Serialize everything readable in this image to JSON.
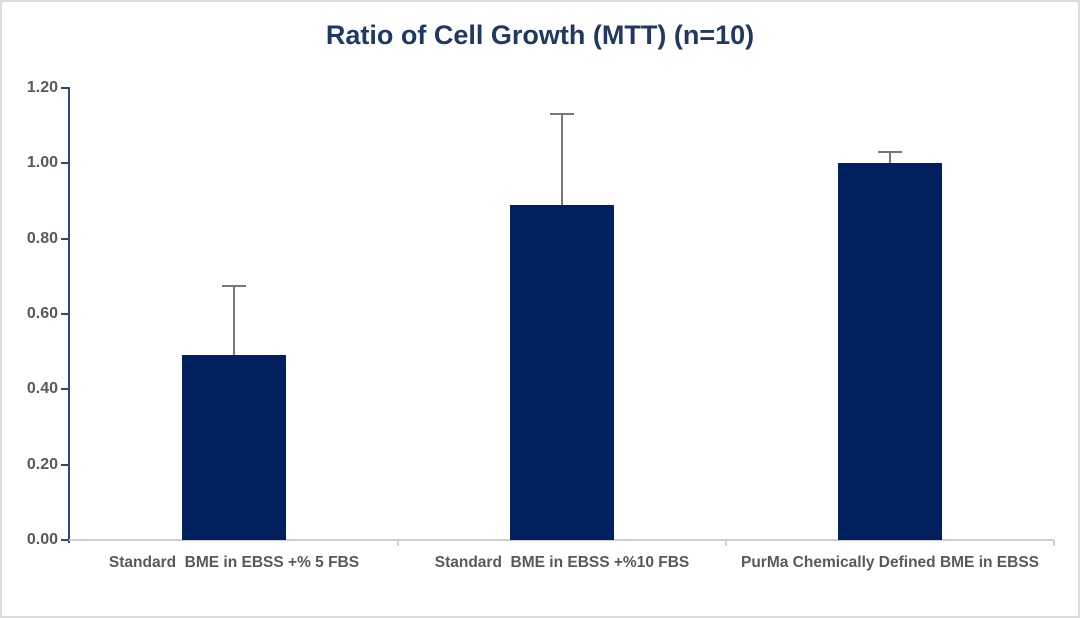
{
  "chart_data": {
    "type": "bar",
    "title": "Ratio of Cell Growth (MTT) (n=10)",
    "categories": [
      "Standard  BME in EBSS +% 5 FBS",
      "Standard  BME in EBSS +%10 FBS",
      "PurMa Chemically Defined BME in EBSS"
    ],
    "series": [
      {
        "name": "Ratio of Cell Growth",
        "values": [
          0.49,
          0.89,
          1.0
        ],
        "error_plus": [
          0.185,
          0.24,
          0.03
        ]
      }
    ],
    "xlabel": "",
    "ylabel": "",
    "ylim": [
      0.0,
      1.2
    ],
    "ytick_step": 0.2,
    "ytick_labels": [
      "0.00",
      "0.20",
      "0.40",
      "0.60",
      "0.80",
      "1.00",
      "1.20"
    ],
    "grid": false,
    "legend_position": "none",
    "colors": {
      "bar_fill": "#002060",
      "title_text": "#1f3864",
      "y_axis_line": "#2e4a7a",
      "ytick_label_text": "#595959",
      "category_label_text": "#595959",
      "error_bar": "#777777",
      "baseline": "#cfcfcf",
      "canvas_border": "#dcdcdc",
      "background": "#ffffff"
    }
  }
}
